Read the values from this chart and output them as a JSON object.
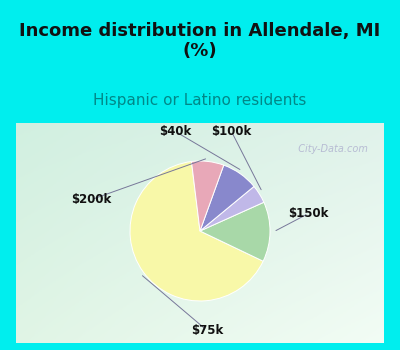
{
  "title": "Income distribution in Allendale, MI\n(%)",
  "subtitle": "Hispanic or Latino residents",
  "title_color": "#111111",
  "subtitle_color": "#008888",
  "labels": [
    "$75k",
    "$150k",
    "$100k",
    "$40k",
    "$200k"
  ],
  "sizes": [
    62,
    13,
    4,
    8,
    7
  ],
  "colors": [
    "#f8f8a8",
    "#a8d8a8",
    "#c0b8e8",
    "#8888cc",
    "#e8a8b8"
  ],
  "startangle": 97,
  "bg_top_color": "#00eeee",
  "bg_left_color": "#00eeee",
  "watermark": "  City-Data.com",
  "title_fontsize": 13,
  "subtitle_fontsize": 11,
  "label_fontsize": 8.5,
  "chart_bg_tl": [
    0.82,
    0.94,
    0.88
  ],
  "chart_bg_br": [
    0.92,
    0.98,
    0.92
  ]
}
